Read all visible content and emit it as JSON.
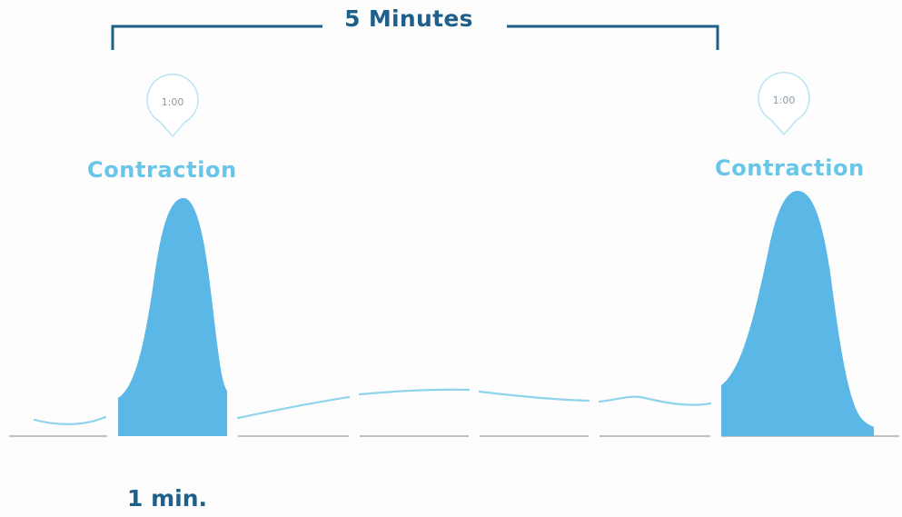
{
  "interval_label": "5 Minutes",
  "duration_label": "1 min.",
  "contractions": [
    {
      "label": "Contraction",
      "marker": "1:00"
    },
    {
      "label": "Contraction",
      "marker": "1:00"
    }
  ],
  "colors": {
    "peak_fill": "#5bb8e6",
    "wave": "#8fd3ec",
    "bracket": "#1f5f8b",
    "label": "#69c6e8",
    "baseline": "#b9c3c9"
  }
}
